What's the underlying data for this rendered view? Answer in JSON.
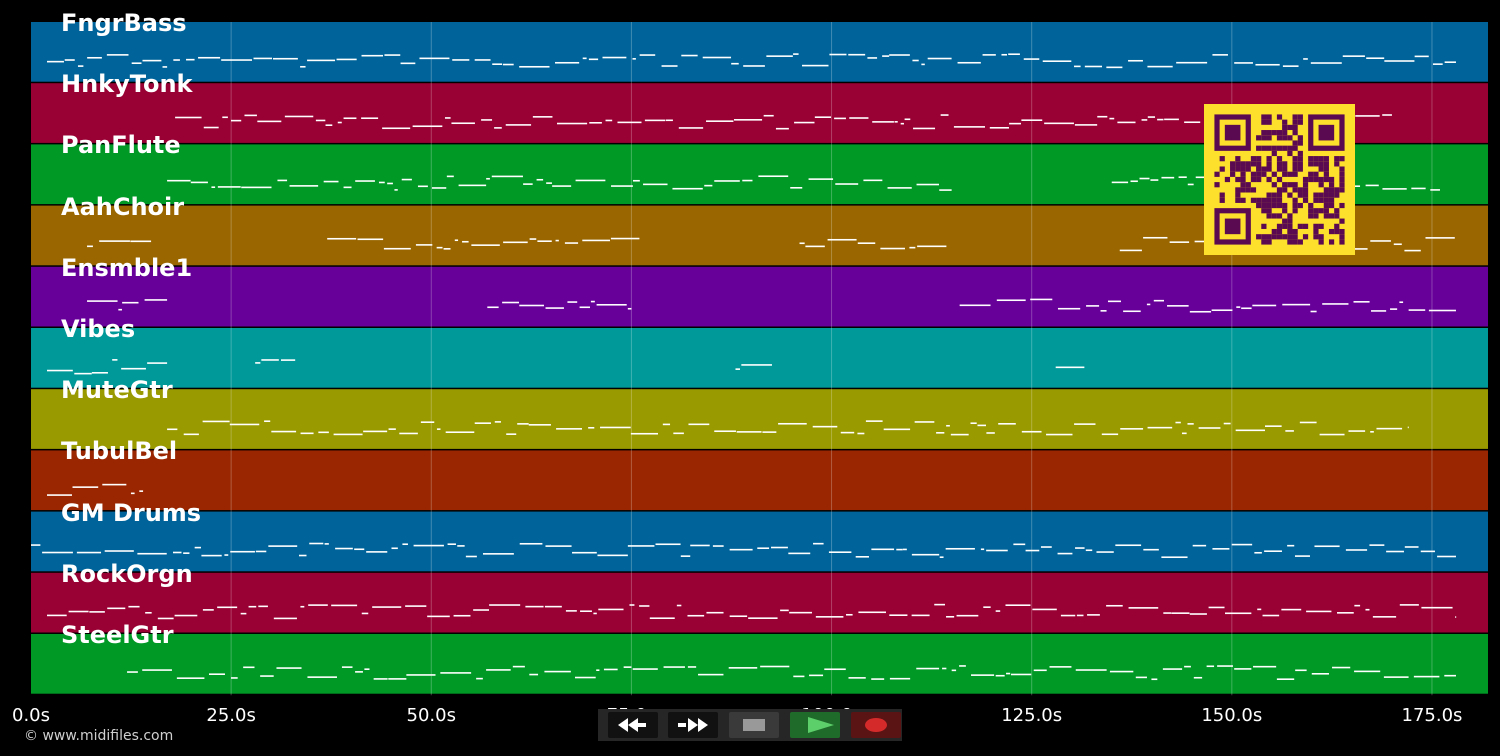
{
  "tracks": [
    {
      "name": "FngrBass",
      "color": "#00649a"
    },
    {
      "name": "HnkyTonk",
      "color": "#990033"
    },
    {
      "name": "PanFlute",
      "color": "#009926"
    },
    {
      "name": "AahChoir",
      "color": "#996600"
    },
    {
      "name": "Ensmble1",
      "color": "#660099"
    },
    {
      "name": "Vibes",
      "color": "#009999"
    },
    {
      "name": "MuteGtr",
      "color": "#999900"
    },
    {
      "name": "TubulBel",
      "color": "#992600"
    },
    {
      "name": "GM Drums",
      "color": "#00649a"
    },
    {
      "name": "RockOrgn",
      "color": "#990033"
    },
    {
      "name": "SteelGtr",
      "color": "#009926"
    }
  ],
  "time_axis": {
    "ticks": [
      "0.0s",
      "25.0s",
      "50.0s",
      "75.0s",
      "100.0s",
      "125.0s",
      "150.0s",
      "175.0s"
    ],
    "tick_values": [
      0,
      25,
      50,
      75,
      100,
      125,
      150,
      175
    ],
    "max_seconds": 182
  },
  "credit": "© www.midifiles.com",
  "transport": {
    "buttons": [
      {
        "name": "rewind-button",
        "icon": "rewind-icon"
      },
      {
        "name": "fast-forward-button",
        "icon": "fast-forward-icon"
      },
      {
        "name": "stop-button",
        "icon": "stop-icon"
      },
      {
        "name": "play-button",
        "icon": "play-icon"
      },
      {
        "name": "record-button",
        "icon": "record-icon"
      }
    ]
  },
  "qr_code": {
    "colors": {
      "fg": "#5a0a50",
      "bg": "#fde02c"
    }
  },
  "colors": {
    "note": "#ffffff",
    "grid": "#ffffff",
    "background": "#000000"
  }
}
